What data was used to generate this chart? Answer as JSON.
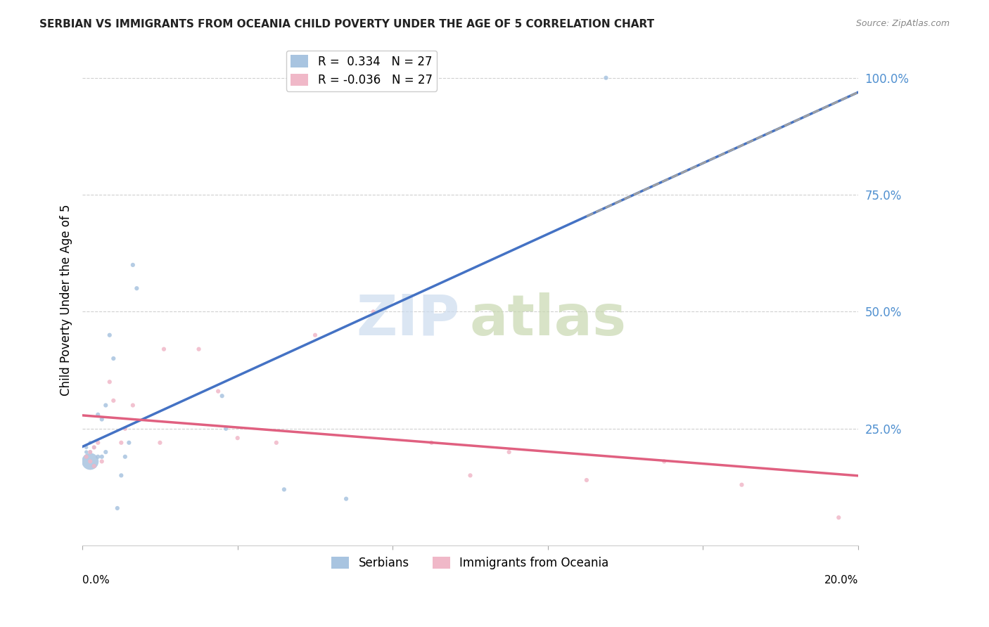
{
  "title": "SERBIAN VS IMMIGRANTS FROM OCEANIA CHILD POVERTY UNDER THE AGE OF 5 CORRELATION CHART",
  "source": "Source: ZipAtlas.com",
  "ylabel": "Child Poverty Under the Age of 5",
  "right_yticks": [
    0.0,
    0.25,
    0.5,
    0.75,
    1.0
  ],
  "right_yticklabels": [
    "",
    "25.0%",
    "50.0%",
    "75.0%",
    "100.0%"
  ],
  "legend_entries": [
    {
      "label": "R =  0.334   N = 27",
      "color": "#a8c4e0"
    },
    {
      "label": "R = -0.036   N = 27",
      "color": "#f0b8c8"
    }
  ],
  "series_labels": [
    "Serbians",
    "Immigrants from Oceania"
  ],
  "series_colors": [
    "#a8c4e0",
    "#f0b8c8"
  ],
  "xlim": [
    0.0,
    0.2
  ],
  "ylim": [
    0.0,
    1.05
  ],
  "serbians_x": [
    0.001,
    0.001,
    0.001,
    0.002,
    0.002,
    0.002,
    0.003,
    0.003,
    0.004,
    0.004,
    0.005,
    0.005,
    0.006,
    0.006,
    0.007,
    0.008,
    0.009,
    0.01,
    0.011,
    0.012,
    0.013,
    0.014,
    0.036,
    0.037,
    0.052,
    0.068,
    0.135
  ],
  "serbians_y": [
    0.19,
    0.2,
    0.21,
    0.18,
    0.2,
    0.22,
    0.17,
    0.21,
    0.19,
    0.28,
    0.27,
    0.19,
    0.2,
    0.3,
    0.45,
    0.4,
    0.08,
    0.15,
    0.19,
    0.22,
    0.6,
    0.55,
    0.32,
    0.25,
    0.12,
    0.1,
    1.0
  ],
  "serbians_sizes": [
    20,
    15,
    15,
    300,
    15,
    15,
    20,
    15,
    20,
    20,
    20,
    20,
    20,
    20,
    20,
    20,
    20,
    20,
    20,
    20,
    20,
    20,
    20,
    20,
    20,
    20,
    20
  ],
  "oceania_x": [
    0.001,
    0.002,
    0.002,
    0.003,
    0.003,
    0.004,
    0.005,
    0.007,
    0.008,
    0.01,
    0.011,
    0.013,
    0.02,
    0.021,
    0.03,
    0.035,
    0.04,
    0.05,
    0.06,
    0.075,
    0.09,
    0.1,
    0.11,
    0.13,
    0.15,
    0.17,
    0.195
  ],
  "oceania_y": [
    0.19,
    0.2,
    0.18,
    0.21,
    0.17,
    0.22,
    0.18,
    0.35,
    0.31,
    0.22,
    0.25,
    0.3,
    0.22,
    0.42,
    0.42,
    0.33,
    0.23,
    0.22,
    0.45,
    0.5,
    0.22,
    0.15,
    0.2,
    0.14,
    0.18,
    0.13,
    0.06
  ],
  "oceania_sizes": [
    20,
    20,
    20,
    20,
    20,
    20,
    20,
    20,
    20,
    20,
    20,
    20,
    20,
    20,
    20,
    20,
    20,
    20,
    20,
    20,
    20,
    20,
    20,
    20,
    20,
    20,
    20
  ],
  "blue_line_color": "#4472c4",
  "pink_line_color": "#e06080",
  "dashed_line_color": "#a0a0a0",
  "grid_color": "#d0d0d0",
  "title_color": "#222222",
  "right_axis_color": "#5090d0"
}
